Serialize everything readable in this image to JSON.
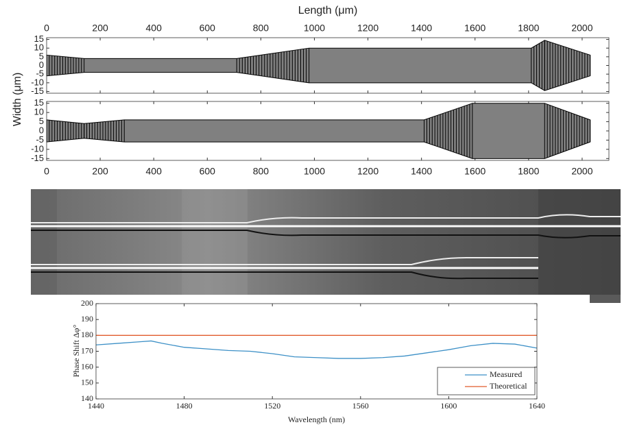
{
  "chart_data": [
    {
      "type": "waveguide",
      "xlabel": "Length (μm)",
      "ylabel": "Width (μm)",
      "color": "#808080",
      "x": [
        0,
        140,
        710,
        980,
        1810,
        1860,
        2030
      ],
      "values": [
        6,
        4,
        4,
        10,
        10,
        14.5,
        6
      ],
      "xlim": [
        0,
        2100
      ],
      "ylim": [
        -16,
        16
      ],
      "xticks": [
        0,
        200,
        400,
        600,
        800,
        1000,
        1200,
        1400,
        1600,
        1800,
        2000
      ],
      "yticks": [
        -15,
        -10,
        -5,
        0,
        5,
        10,
        15
      ]
    },
    {
      "type": "waveguide",
      "color": "#808080",
      "x": [
        0,
        140,
        290,
        1410,
        1590,
        1860,
        2030
      ],
      "values": [
        6,
        4,
        6,
        6,
        15,
        15,
        6
      ],
      "xlim": [
        0,
        2100
      ],
      "ylim": [
        -16,
        16
      ],
      "xticks": [
        0,
        200,
        400,
        600,
        800,
        1000,
        1200,
        1400,
        1600,
        1800,
        2000
      ],
      "yticks": [
        -15,
        -10,
        -5,
        0,
        5,
        10,
        15
      ]
    },
    {
      "type": "line",
      "xlabel": "Wavelength (nm)",
      "ylabel": "Phase Shift Δφ°",
      "xlim": [
        1440,
        1640
      ],
      "ylim": [
        140,
        200
      ],
      "xticks": [
        1440,
        1480,
        1520,
        1560,
        1600,
        1640
      ],
      "yticks": [
        140,
        150,
        160,
        170,
        180,
        190,
        200
      ],
      "series": [
        {
          "name": "Measured",
          "color": "#3b8fc6",
          "x": [
            1440,
            1450,
            1460,
            1465,
            1470,
            1480,
            1490,
            1500,
            1510,
            1520,
            1530,
            1540,
            1550,
            1560,
            1570,
            1580,
            1590,
            1600,
            1610,
            1620,
            1630,
            1640
          ],
          "values": [
            174,
            175,
            176,
            176.5,
            175,
            172.5,
            171.5,
            170.5,
            170,
            168.5,
            166.5,
            166,
            165.5,
            165.5,
            166,
            167,
            169,
            171,
            173.5,
            175,
            174.5,
            172
          ]
        },
        {
          "name": "Theoretical",
          "color": "#e05a2b",
          "x": [
            1440,
            1640
          ],
          "values": [
            180,
            180
          ]
        }
      ]
    }
  ]
}
